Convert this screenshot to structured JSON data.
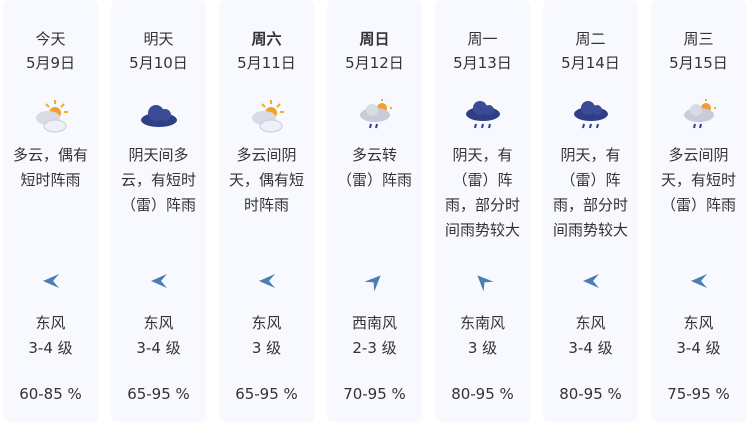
{
  "forecast": [
    {
      "label": "今天",
      "date": "5月9日",
      "bold": false,
      "icon": "partly-cloudy-icon",
      "desc": [
        "多云，偶有",
        "短时阵雨"
      ],
      "wind_dir_icon": "arrow-west-icon",
      "rotate": 0,
      "wind": "东风",
      "level": "3-4 级",
      "humidity": "60-85 %"
    },
    {
      "label": "明天",
      "date": "5月10日",
      "bold": false,
      "icon": "overcast-icon",
      "desc": [
        "阴天间多",
        "云，有短时",
        "（雷）阵雨"
      ],
      "wind_dir_icon": "arrow-west-icon",
      "rotate": 0,
      "wind": "东风",
      "level": "3-4 级",
      "humidity": "65-95 %"
    },
    {
      "label": "周六",
      "date": "5月11日",
      "bold": true,
      "icon": "partly-cloudy-icon",
      "desc": [
        "多云间阴",
        "天，偶有短",
        "时阵雨"
      ],
      "wind_dir_icon": "arrow-west-icon",
      "rotate": 0,
      "wind": "东风",
      "level": "3 级",
      "humidity": "65-95 %"
    },
    {
      "label": "周日",
      "date": "5月12日",
      "bold": true,
      "icon": "cloudy-shower-icon",
      "desc": [
        "多云转",
        "（雷）阵雨"
      ],
      "wind_dir_icon": "arrow-northeast-icon",
      "rotate": 135,
      "wind": "西南风",
      "level": "2-3 级",
      "humidity": "70-95 %"
    },
    {
      "label": "周一",
      "date": "5月13日",
      "bold": false,
      "icon": "overcast-rain-icon",
      "desc": [
        "阴天，有",
        "（雷）阵",
        "雨，部分时",
        "间雨势较大"
      ],
      "wind_dir_icon": "arrow-northwest-icon",
      "rotate": 45,
      "wind": "东南风",
      "level": "3 级",
      "humidity": "80-95 %"
    },
    {
      "label": "周二",
      "date": "5月14日",
      "bold": false,
      "icon": "overcast-rain-icon",
      "desc": [
        "阴天，有",
        "（雷）阵",
        "雨，部分时",
        "间雨势较大"
      ],
      "wind_dir_icon": "arrow-west-icon",
      "rotate": 0,
      "wind": "东风",
      "level": "3-4 级",
      "humidity": "80-95 %"
    },
    {
      "label": "周三",
      "date": "5月15日",
      "bold": false,
      "icon": "cloudy-shower-icon",
      "desc": [
        "多云间阴",
        "天，有短时",
        "（雷）阵雨"
      ],
      "wind_dir_icon": "arrow-west-icon",
      "rotate": 0,
      "wind": "东风",
      "level": "3-4 级",
      "humidity": "75-95 %"
    }
  ],
  "colors": {
    "card": "#f7f9fe",
    "arrow": "#4a7fb5",
    "dark_cloud": "#2e3f86",
    "sun": "#f0b020"
  }
}
